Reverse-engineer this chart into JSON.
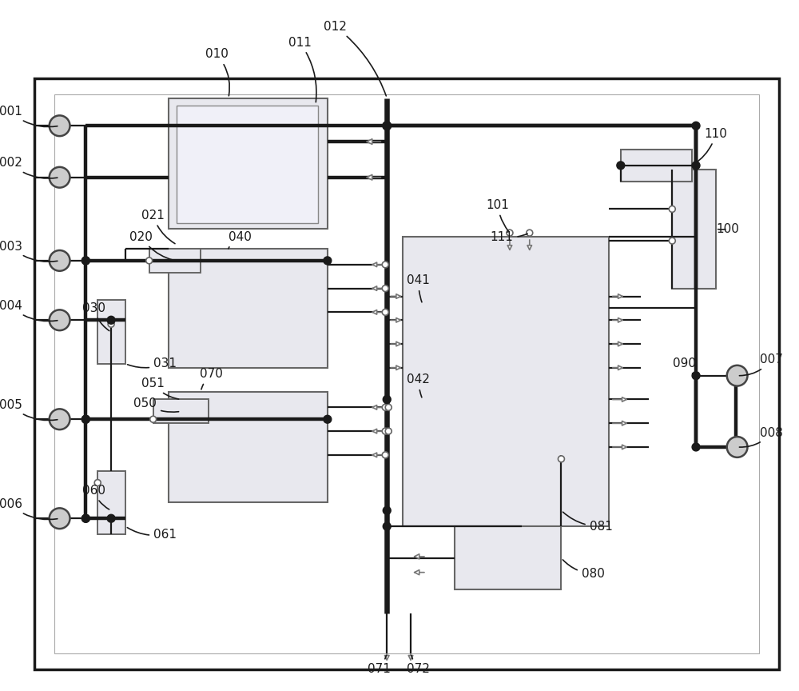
{
  "bg": "#ffffff",
  "lc": "#1a1a1a",
  "box_fill": "#e8e8ee",
  "box_fill2": "#dcdce8",
  "tlw": 3.2,
  "nlw": 1.6,
  "slw": 1.2
}
